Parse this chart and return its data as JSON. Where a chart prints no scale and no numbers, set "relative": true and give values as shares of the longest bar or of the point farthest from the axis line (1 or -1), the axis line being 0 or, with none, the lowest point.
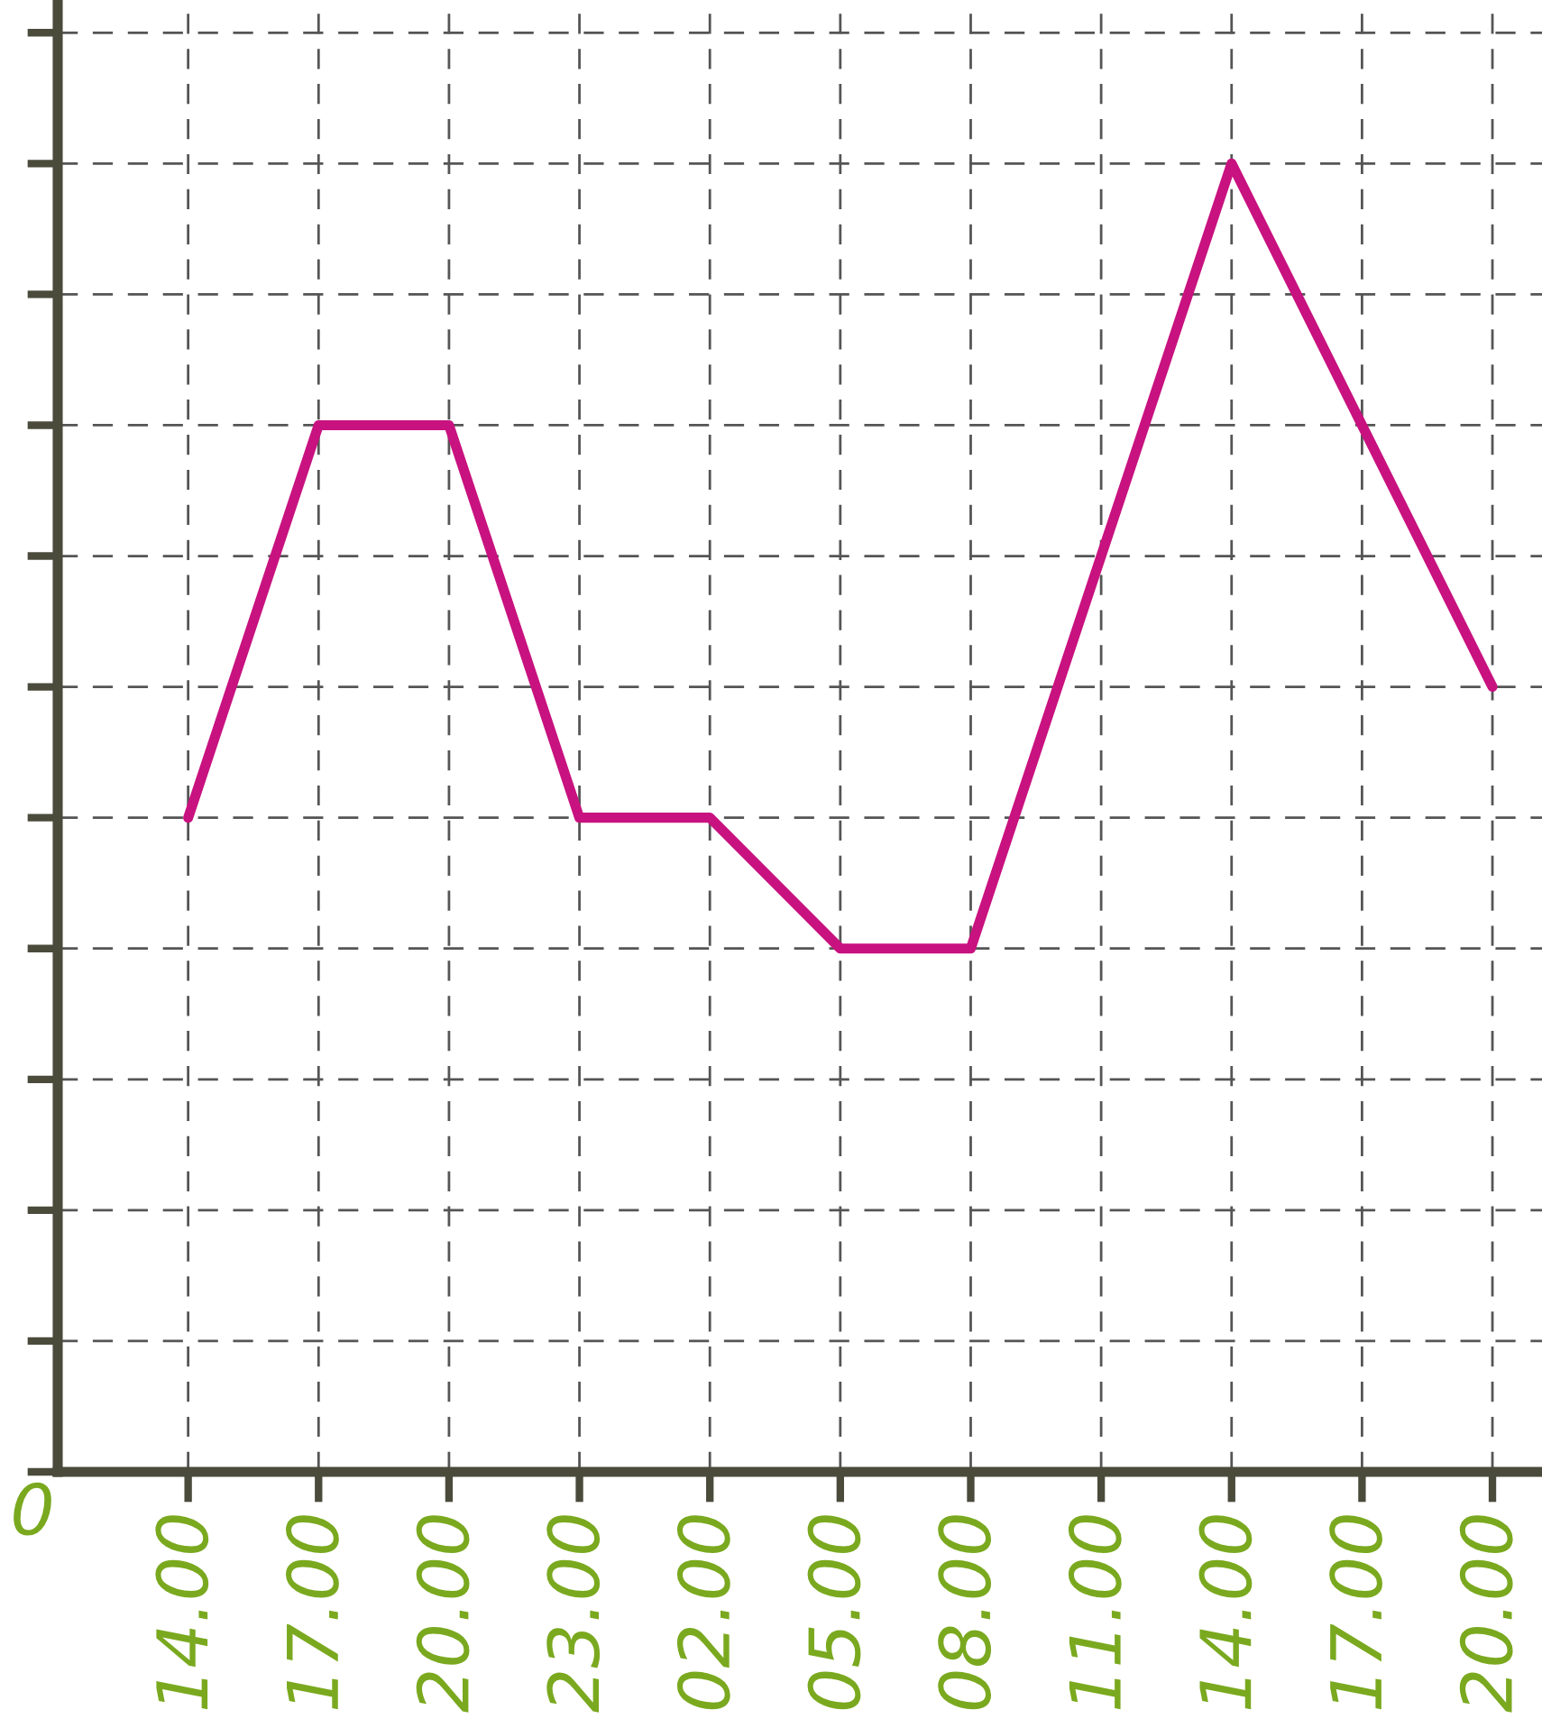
{
  "chart_data": {
    "type": "line",
    "relative": true,
    "categories": [
      "14.00",
      "17.00",
      "20.00",
      "23.00",
      "02.00",
      "05.00",
      "08.00",
      "11.00",
      "14.00",
      "17.00",
      "20.00"
    ],
    "series": [
      {
        "color": "#c8127f",
        "values": [
          0.5,
          0.8,
          0.8,
          0.5,
          0.5,
          0.4,
          0.4,
          0.7,
          1.0,
          0.8,
          0.6
        ]
      }
    ],
    "annotations": [
      "0"
    ],
    "grid": true,
    "marker": "none",
    "line_style": "solid",
    "legend": false
  }
}
